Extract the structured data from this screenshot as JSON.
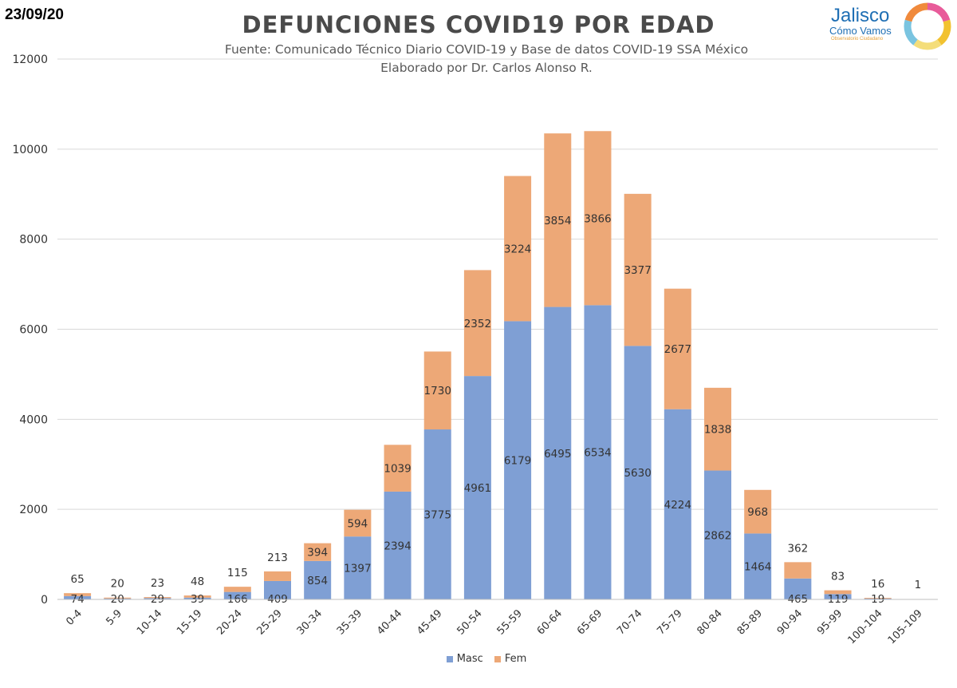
{
  "header": {
    "date": "23/09/20",
    "logo_name": "Jalisco",
    "logo_tagline": "Cómo Vamos",
    "logo_subtext": "Observatorio Ciudadano"
  },
  "colors": {
    "masc": "#7f9fd4",
    "fem": "#eda877",
    "grid": "#d9d9d9",
    "text": "#333333"
  },
  "chart_data": {
    "type": "bar",
    "stacked": true,
    "title": "DEFUNCIONES COVID19 POR EDAD",
    "subtitle": "Fuente: Comunicado Técnico Diario COVID-19 y Base de datos COVID-19 SSA México",
    "subtitle2": "Elaborado por Dr. Carlos Alonso R.",
    "categories": [
      "0-4",
      "5-9",
      "10-14",
      "15-19",
      "20-24",
      "25-29",
      "30-34",
      "35-39",
      "40-44",
      "45-49",
      "50-54",
      "55-59",
      "60-64",
      "65-69",
      "70-74",
      "75-79",
      "80-84",
      "85-89",
      "90-94",
      "95-99",
      "100-104",
      "105-109"
    ],
    "series": [
      {
        "name": "Masc",
        "values": [
          74,
          20,
          29,
          39,
          166,
          409,
          854,
          1397,
          2394,
          3775,
          4961,
          6179,
          6495,
          6534,
          5630,
          4224,
          2862,
          1464,
          465,
          119,
          19,
          0
        ]
      },
      {
        "name": "Fem",
        "values": [
          65,
          20,
          23,
          48,
          115,
          213,
          394,
          594,
          1039,
          1730,
          2352,
          3224,
          3854,
          3866,
          3377,
          2677,
          1838,
          968,
          362,
          83,
          16,
          1
        ]
      }
    ],
    "masc_labels": [
      "74",
      "20",
      "29",
      "39",
      "166",
      "409",
      "854",
      "1397",
      "2394",
      "3775",
      "4961",
      "6179",
      "6495",
      "6534",
      "5630",
      "4224",
      "2862",
      "1464",
      "465",
      "119",
      "19",
      ""
    ],
    "fem_labels": [
      "65",
      "20",
      "23",
      "48",
      "115",
      "213",
      "394",
      "594",
      "1039",
      "1730",
      "2352",
      "3224",
      "3854",
      "3866",
      "3377",
      "2677",
      "1838",
      "968",
      "362",
      "83",
      "16",
      "1"
    ],
    "yticks": [
      "0",
      "2000",
      "4000",
      "6000",
      "8000",
      "10000",
      "12000"
    ],
    "ylim": [
      0,
      12000
    ],
    "grid": true,
    "legend_position": "bottom-center"
  }
}
